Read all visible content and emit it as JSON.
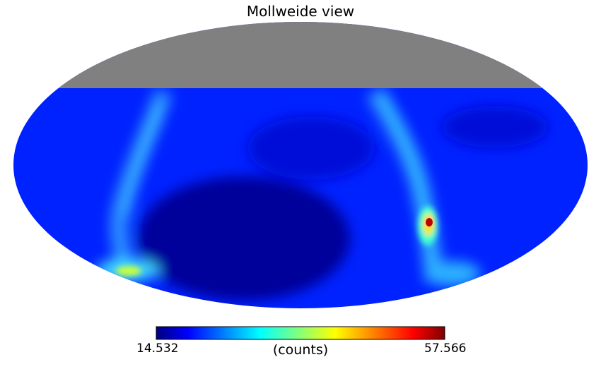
{
  "title": "Mollweide view",
  "colorbar": {
    "min_label": "14.532",
    "max_label": "57.566",
    "unit_label": "(counts)",
    "min": 14.532,
    "max": 57.566,
    "colormap": "jet",
    "colors": [
      "#00007f",
      "#0000ff",
      "#00ffff",
      "#ffff00",
      "#ff0000",
      "#7f0000"
    ]
  },
  "map": {
    "projection": "Mollweide",
    "background_value": 25,
    "masked_region_color": "#808080",
    "masked_region": "northern sky cap (unobserved)",
    "features": [
      {
        "name": "galactic-plane-band-left",
        "peak_value": 33
      },
      {
        "name": "galactic-plane-band-right",
        "peak_value": 37
      },
      {
        "name": "dark-hole-south",
        "min_value": 15
      },
      {
        "name": "bright-source-right",
        "peak_value": 57.566
      },
      {
        "name": "bright-spot-bottom-left",
        "peak_value": 40
      }
    ]
  }
}
